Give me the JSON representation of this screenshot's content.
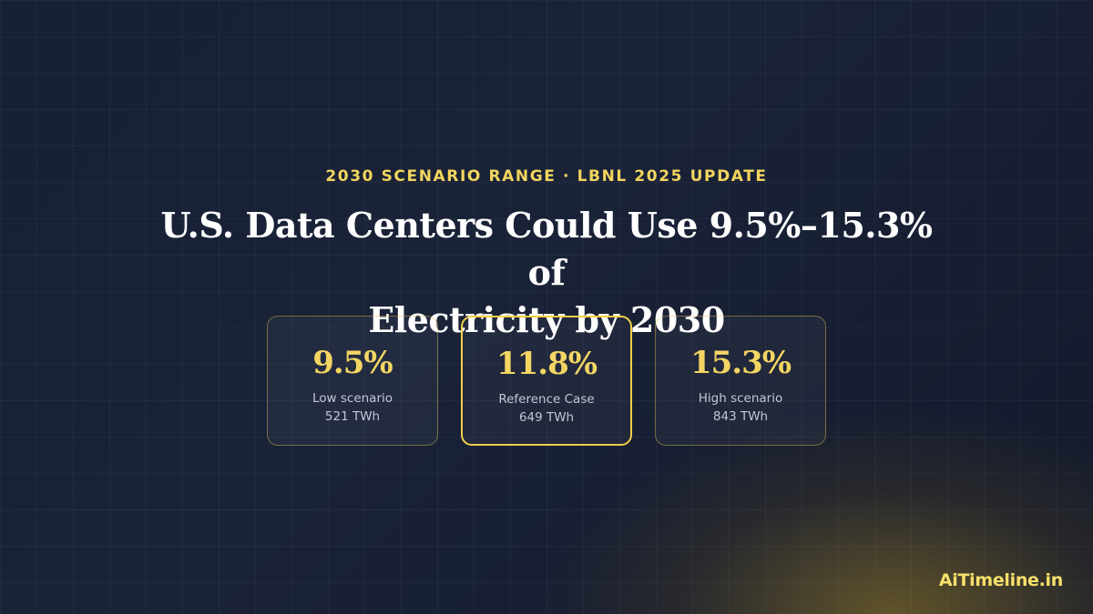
{
  "header": {
    "eyebrow": "2030 SCENARIO RANGE · LBNL 2025 UPDATE",
    "title_line1": "U.S. Data Centers Could Use 9.5%–15.3% of",
    "title_line2": "Electricity by 2030"
  },
  "scenarios": [
    {
      "value": "9.5%",
      "label": "Low scenario",
      "sub": "521 TWh",
      "featured": false
    },
    {
      "value": "11.8%",
      "label": "Reference Case",
      "sub": "649 TWh",
      "featured": true
    },
    {
      "value": "15.3%",
      "label": "High scenario",
      "sub": "843 TWh",
      "featured": false
    }
  ],
  "brand": {
    "name": "AiTimeline.in"
  },
  "colors": {
    "accent": "#f2d55e",
    "background": "#1a2238",
    "text": "#ffffff",
    "muted": "#c3c7d3"
  }
}
